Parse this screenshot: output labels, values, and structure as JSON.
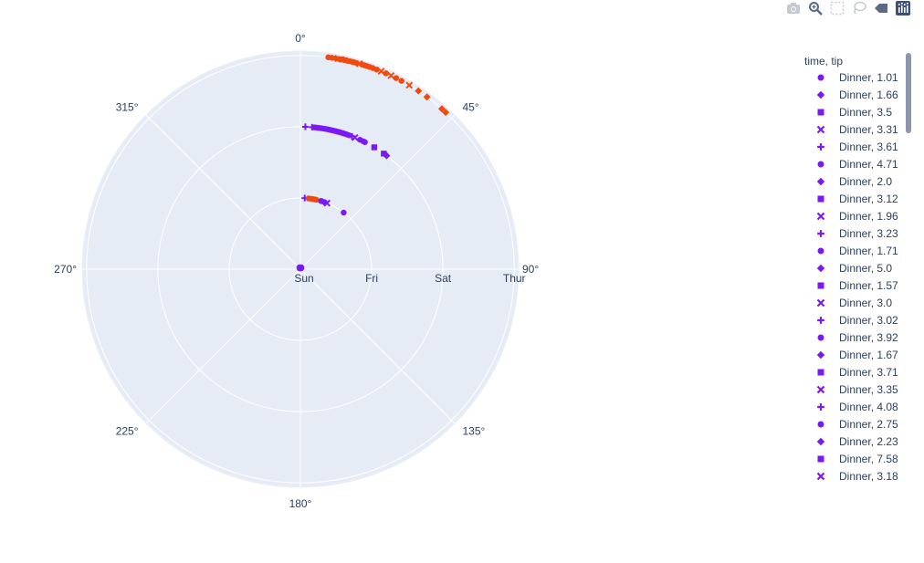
{
  "modebar": {
    "icons": [
      "camera-icon",
      "zoom-icon",
      "select-box-icon",
      "lasso-icon",
      "autoscale-icon",
      "plotly-logo-icon"
    ]
  },
  "chart_data": {
    "type": "scatter",
    "polar": true,
    "background_color": "#E5ECF6",
    "grid_color": "#ffffff",
    "angular_axis": {
      "direction": "clockwise",
      "rotation_at_top": 0,
      "tick_labels": [
        "0°",
        "45°",
        "90°",
        "135°",
        "180°",
        "225°",
        "270°",
        "315°"
      ],
      "tick_values": [
        0,
        45,
        90,
        135,
        180,
        225,
        270,
        315
      ]
    },
    "radial_axis": {
      "type": "category",
      "categories": [
        "Sun",
        "Fri",
        "Sat",
        "Thur"
      ],
      "range": [
        0,
        3
      ]
    },
    "series_colors": [
      "#636EFA-replaced",
      "#7B19F5",
      "#F04A0F"
    ],
    "points": {
      "red_outer": {
        "color": "#F04A0F",
        "r": "Thur",
        "theta": [
          7.5,
          8.5,
          9.5,
          10.3,
          11.1,
          11.9,
          12.6,
          13.3,
          14.0,
          14.6,
          15.3,
          16.0,
          16.7,
          17.4,
          18.1,
          18.9,
          19.8,
          20.9,
          22.2,
          23.6,
          25.1,
          26.6,
          28.2,
          30.6,
          33.5,
          36.3,
          41.4,
          42.8
        ],
        "symbols": [
          "circle",
          "circle",
          "diamond",
          "circle",
          "square",
          "circle",
          "diamond",
          "circle",
          "circle",
          "circle",
          "circle",
          "x",
          "circle",
          "circle",
          "circle",
          "circle",
          "circle",
          "circle",
          "x",
          "circle",
          "x",
          "circle",
          "circle",
          "x",
          "diamond",
          "diamond",
          "diamond",
          "diamond"
        ]
      },
      "purple_sat": {
        "color": "#7B19F5",
        "r": "Sat",
        "theta": [
          2.0,
          4.7,
          5.6,
          6.3,
          7.1,
          7.8,
          8.5,
          9.3,
          10.2,
          11.0,
          11.8,
          12.6,
          13.5,
          14.3,
          15.1,
          15.8,
          16.6,
          17.4,
          18.2,
          19.0,
          20.0,
          21.2,
          22.5,
          24.7,
          26.1,
          26.9,
          31.2,
          35.8,
          37.2
        ],
        "symbols": [
          "cross",
          "cross",
          "circle",
          "circle",
          "circle",
          "circle",
          "circle",
          "circle",
          "circle",
          "circle",
          "circle",
          "circle",
          "circle",
          "circle",
          "circle",
          "circle",
          "circle",
          "circle",
          "circle",
          "circle",
          "circle",
          "cross",
          "x",
          "circle",
          "circle",
          "circle",
          "square",
          "square",
          "diamond"
        ]
      },
      "mixed_fri": {
        "r": "Fri",
        "theta": [
          3.5,
          6.6,
          8.5,
          10.2,
          11.9,
          12.9,
          16.8,
          17.6,
          19.9,
          21.9,
          37.4
        ],
        "colors": [
          "#7B19F5",
          "#F04A0F",
          "#F04A0F",
          "#F04A0F",
          "#F04A0F",
          "#F04A0F",
          "#7B19F5",
          "#7B19F5",
          "#7B19F5",
          "#7B19F5",
          "#7B19F5"
        ],
        "symbols": [
          "cross",
          "circle",
          "circle",
          "circle",
          "circle",
          "circle",
          "circle",
          "circle",
          "circle",
          "x",
          "circle"
        ]
      },
      "center_sun": {
        "color": "#7B19F5",
        "r": "Sun",
        "count": 6
      }
    }
  },
  "legend": {
    "title": "time, tip",
    "items": [
      {
        "label": "Dinner, 1.01",
        "symbol": "circle"
      },
      {
        "label": "Dinner, 1.66",
        "symbol": "diamond"
      },
      {
        "label": "Dinner, 3.5",
        "symbol": "square"
      },
      {
        "label": "Dinner, 3.31",
        "symbol": "x"
      },
      {
        "label": "Dinner, 3.61",
        "symbol": "cross"
      },
      {
        "label": "Dinner, 4.71",
        "symbol": "circle"
      },
      {
        "label": "Dinner, 2.0",
        "symbol": "diamond"
      },
      {
        "label": "Dinner, 3.12",
        "symbol": "square"
      },
      {
        "label": "Dinner, 1.96",
        "symbol": "x"
      },
      {
        "label": "Dinner, 3.23",
        "symbol": "cross"
      },
      {
        "label": "Dinner, 1.71",
        "symbol": "circle"
      },
      {
        "label": "Dinner, 5.0",
        "symbol": "diamond"
      },
      {
        "label": "Dinner, 1.57",
        "symbol": "square"
      },
      {
        "label": "Dinner, 3.0",
        "symbol": "x"
      },
      {
        "label": "Dinner, 3.02",
        "symbol": "cross"
      },
      {
        "label": "Dinner, 3.92",
        "symbol": "circle"
      },
      {
        "label": "Dinner, 1.67",
        "symbol": "diamond"
      },
      {
        "label": "Dinner, 3.71",
        "symbol": "square"
      },
      {
        "label": "Dinner, 3.35",
        "symbol": "x"
      },
      {
        "label": "Dinner, 4.08",
        "symbol": "cross"
      },
      {
        "label": "Dinner, 2.75",
        "symbol": "circle"
      },
      {
        "label": "Dinner, 2.23",
        "symbol": "diamond"
      },
      {
        "label": "Dinner, 7.58",
        "symbol": "square"
      },
      {
        "label": "Dinner, 3.18",
        "symbol": "x"
      }
    ],
    "symbol_color": "#7B19F5"
  }
}
